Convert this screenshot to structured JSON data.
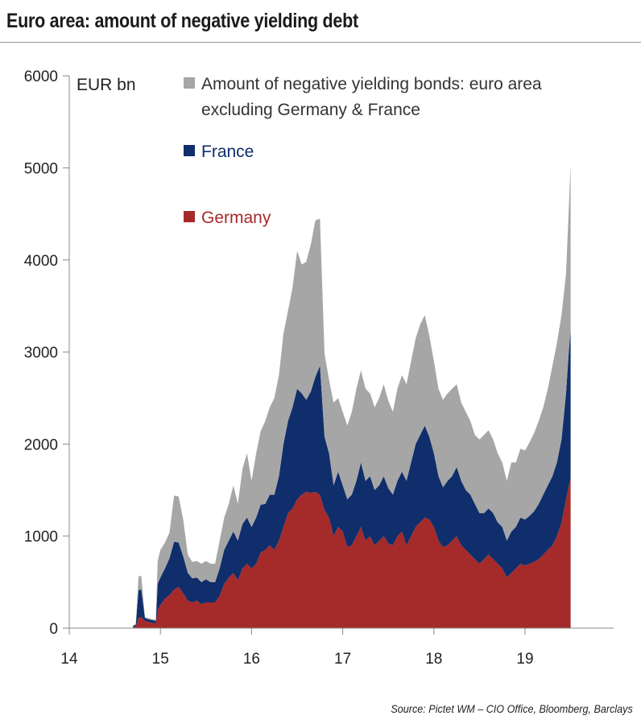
{
  "title": "Euro area: amount of negative yielding debt",
  "source": "Source: Pictet WM – CIO Office, Bloomberg, Barclays",
  "chart_data": {
    "type": "area",
    "stacked": true,
    "unit_label": "EUR bn",
    "ylim": [
      0,
      6000
    ],
    "xlim": [
      14,
      20
    ],
    "y_ticks": [
      0,
      1000,
      2000,
      3000,
      4000,
      5000,
      6000
    ],
    "x_ticks": [
      14,
      15,
      16,
      17,
      18,
      19
    ],
    "x_tick_labels": [
      "14",
      "15",
      "16",
      "17",
      "18",
      "19"
    ],
    "grid": false,
    "legend_position": "top",
    "x": [
      14.7,
      14.73,
      14.76,
      14.79,
      14.83,
      14.86,
      14.9,
      14.95,
      14.97,
      15.0,
      15.05,
      15.1,
      15.15,
      15.2,
      15.25,
      15.3,
      15.35,
      15.4,
      15.45,
      15.5,
      15.55,
      15.6,
      15.65,
      15.7,
      15.75,
      15.8,
      15.85,
      15.9,
      15.95,
      16.0,
      16.05,
      16.1,
      16.15,
      16.2,
      16.25,
      16.3,
      16.35,
      16.4,
      16.45,
      16.5,
      16.55,
      16.6,
      16.65,
      16.7,
      16.75,
      16.8,
      16.85,
      16.9,
      16.95,
      17.0,
      17.05,
      17.1,
      17.15,
      17.2,
      17.25,
      17.3,
      17.35,
      17.4,
      17.45,
      17.5,
      17.55,
      17.6,
      17.65,
      17.7,
      17.75,
      17.8,
      17.85,
      17.9,
      17.95,
      18.0,
      18.05,
      18.1,
      18.15,
      18.2,
      18.25,
      18.3,
      18.35,
      18.4,
      18.45,
      18.5,
      18.55,
      18.6,
      18.65,
      18.7,
      18.75,
      18.8,
      18.85,
      18.9,
      18.95,
      19.0,
      19.05,
      19.1,
      19.15,
      19.2,
      19.25,
      19.3,
      19.35,
      19.4,
      19.45,
      19.48,
      19.5
    ],
    "series": [
      {
        "name": "Germany",
        "color": "#a52a2a",
        "values": [
          10,
          15,
          110,
          120,
          80,
          70,
          60,
          50,
          200,
          250,
          320,
          360,
          420,
          450,
          380,
          300,
          280,
          300,
          260,
          280,
          280,
          280,
          350,
          480,
          550,
          600,
          520,
          650,
          700,
          650,
          700,
          820,
          850,
          900,
          850,
          950,
          1100,
          1250,
          1300,
          1400,
          1450,
          1480,
          1470,
          1480,
          1450,
          1280,
          1200,
          1000,
          1100,
          1050,
          880,
          900,
          1000,
          1100,
          950,
          1000,
          900,
          950,
          1000,
          920,
          900,
          1000,
          1050,
          900,
          1000,
          1100,
          1150,
          1200,
          1180,
          1100,
          950,
          880,
          900,
          950,
          1000,
          900,
          850,
          800,
          750,
          700,
          750,
          800,
          750,
          700,
          650,
          550,
          600,
          650,
          700,
          680,
          700,
          720,
          750,
          800,
          850,
          900,
          1000,
          1150,
          1400,
          1550,
          1620
        ]
      },
      {
        "name": "France",
        "color": "#0f2e6b",
        "values": [
          15,
          20,
          300,
          300,
          30,
          30,
          30,
          30,
          280,
          300,
          330,
          400,
          520,
          480,
          400,
          300,
          260,
          250,
          240,
          250,
          220,
          220,
          300,
          370,
          400,
          450,
          430,
          480,
          500,
          450,
          500,
          520,
          500,
          550,
          600,
          700,
          900,
          1000,
          1100,
          1200,
          1100,
          1000,
          1100,
          1250,
          1400,
          800,
          700,
          550,
          600,
          500,
          520,
          550,
          600,
          700,
          650,
          650,
          600,
          600,
          650,
          600,
          550,
          600,
          650,
          700,
          800,
          900,
          950,
          1000,
          900,
          800,
          700,
          650,
          700,
          700,
          750,
          700,
          650,
          650,
          600,
          550,
          500,
          500,
          500,
          450,
          450,
          400,
          450,
          450,
          500,
          500,
          520,
          550,
          600,
          650,
          700,
          750,
          800,
          900,
          1150,
          1450,
          1620
        ]
      },
      {
        "name": "Amount of negative yielding bonds: euro area excluding Germany & France",
        "color": "#a6a6a6",
        "values": [
          5,
          10,
          150,
          150,
          10,
          10,
          10,
          10,
          250,
          300,
          280,
          280,
          500,
          500,
          400,
          200,
          180,
          180,
          200,
          200,
          200,
          200,
          300,
          350,
          400,
          500,
          400,
          600,
          700,
          500,
          700,
          800,
          900,
          950,
          1050,
          1100,
          1200,
          1200,
          1300,
          1500,
          1400,
          1500,
          1600,
          1700,
          1600,
          900,
          800,
          900,
          800,
          800,
          800,
          900,
          1000,
          1000,
          1000,
          900,
          900,
          950,
          1000,
          950,
          900,
          1000,
          1050,
          1050,
          1100,
          1150,
          1200,
          1200,
          1100,
          1000,
          950,
          950,
          950,
          950,
          900,
          850,
          850,
          800,
          750,
          800,
          850,
          850,
          800,
          750,
          700,
          650,
          750,
          700,
          750,
          750,
          800,
          850,
          900,
          950,
          1050,
          1200,
          1300,
          1350,
          1300,
          1550,
          1800
        ]
      }
    ],
    "legend": [
      {
        "key": "others",
        "label_lines": [
          "Amount of negative yielding bonds: euro area",
          "excluding Germany & France"
        ],
        "color": "#a6a6a6",
        "text_color": "#333333"
      },
      {
        "key": "france",
        "label_lines": [
          "France"
        ],
        "color": "#0f2e6b",
        "text_color": "#0f2e6b"
      },
      {
        "key": "germany",
        "label_lines": [
          "Germany"
        ],
        "color": "#a52a2a",
        "text_color": "#a52a2a"
      }
    ]
  }
}
